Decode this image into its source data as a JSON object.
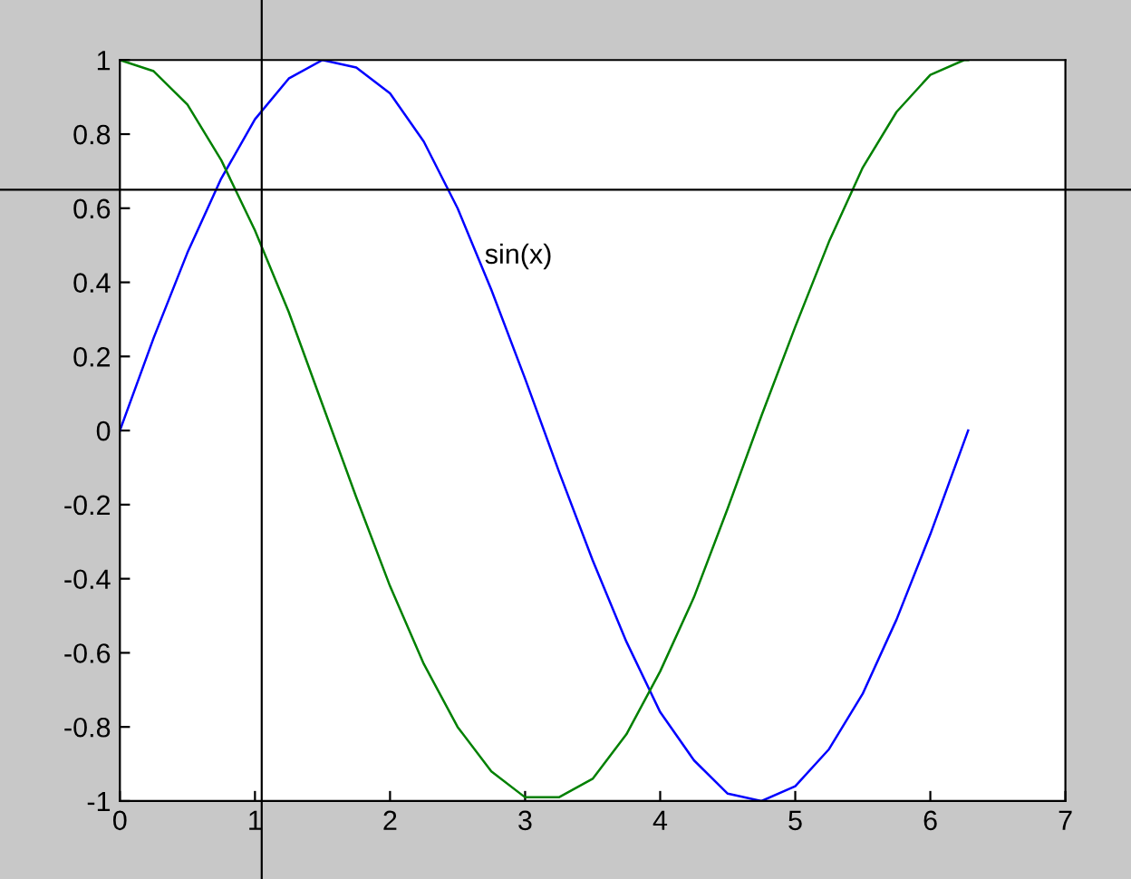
{
  "chart_data": {
    "type": "line",
    "x": [
      0,
      0.25,
      0.5,
      0.75,
      1,
      1.25,
      1.5,
      1.75,
      2,
      2.25,
      2.5,
      2.75,
      3,
      3.25,
      3.5,
      3.75,
      4,
      4.25,
      4.5,
      4.75,
      5,
      5.25,
      5.5,
      5.75,
      6,
      6.25,
      6.28
    ],
    "series": [
      {
        "color": "#0000ff",
        "values": [
          0,
          0.25,
          0.48,
          0.68,
          0.84,
          0.95,
          1.0,
          0.98,
          0.91,
          0.78,
          0.6,
          0.38,
          0.14,
          -0.11,
          -0.35,
          -0.57,
          -0.76,
          -0.89,
          -0.98,
          -1.0,
          -0.96,
          -0.86,
          -0.71,
          -0.51,
          -0.28,
          -0.03,
          0.0
        ]
      },
      {
        "color": "#008000",
        "values": [
          1,
          0.97,
          0.88,
          0.73,
          0.54,
          0.32,
          0.07,
          -0.18,
          -0.42,
          -0.63,
          -0.8,
          -0.92,
          -0.99,
          -0.99,
          -0.94,
          -0.82,
          -0.65,
          -0.45,
          -0.21,
          0.04,
          0.28,
          0.51,
          0.71,
          0.86,
          0.96,
          1.0,
          1.0
        ]
      }
    ],
    "xlim": [
      0,
      7
    ],
    "xticks": [
      0,
      1,
      2,
      3,
      4,
      5,
      6,
      7
    ],
    "ylim": [
      -1,
      1
    ],
    "yticks": [
      -1,
      -0.8,
      -0.6,
      -0.4,
      -0.2,
      0,
      0.2,
      0.4,
      0.6,
      0.8,
      1
    ],
    "annotations": [
      {
        "text": "sin(x)",
        "x": 2.7,
        "y": 0.47
      }
    ],
    "ref_lines": [
      {
        "axis": "x",
        "value": 1.05,
        "color": "#000000"
      },
      {
        "axis": "y",
        "value": 0.65,
        "color": "#000000"
      }
    ],
    "grid": false,
    "legend": false,
    "marker": "none",
    "line_style": "solid"
  }
}
